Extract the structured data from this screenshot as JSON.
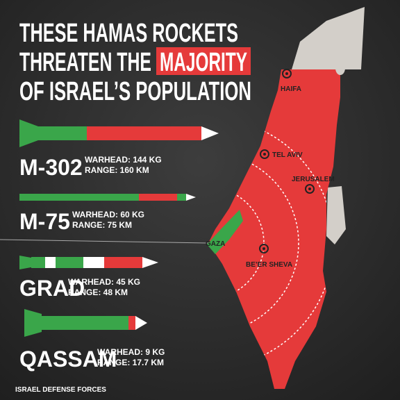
{
  "title": {
    "line1": "THESE HAMAS ROCKETS",
    "line2": "THREATEN THE",
    "highlight": "MAJORITY",
    "line3": "OF ISRAEL’S POPULATION"
  },
  "rockets": [
    {
      "name": "M-302",
      "warhead": "WARHEAD: 144 KG",
      "range": "RANGE: 160 KM"
    },
    {
      "name": "M-75",
      "warhead": "WARHEAD: 60 KG",
      "range": "RANGE: 75 KM"
    },
    {
      "name": "GRAD",
      "warhead": "WARHEAD: 45 KG",
      "range": "RANGE: 48 KM"
    },
    {
      "name": "QASSAM",
      "warhead": "WARHEAD: 9 KG",
      "range": "RANGE: 17.7 KM"
    }
  ],
  "cities": [
    "HAIFA",
    "TEL AVIV",
    "JERUSALEM",
    "GAZA",
    "BE’ER SHEVA"
  ],
  "footer": "ISRAEL DEFENSE FORCES"
}
